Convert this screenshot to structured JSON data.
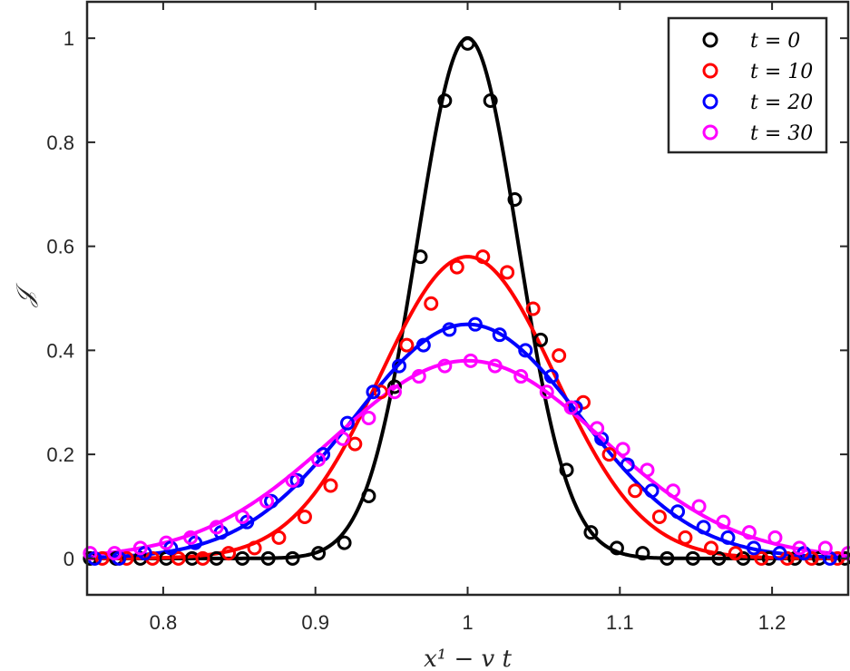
{
  "chart_data": {
    "type": "line",
    "title": "",
    "xlabel": "x¹ − v t",
    "ylabel": "𝒥",
    "xlim": [
      0.75,
      1.25
    ],
    "ylim": [
      -0.07,
      1.07
    ],
    "xticks": [
      0.8,
      0.9,
      1,
      1.1,
      1.2
    ],
    "xtick_labels": [
      "0.8",
      "0.9",
      "1",
      "1.1",
      "1.2"
    ],
    "yticks": [
      0,
      0.2,
      0.4,
      0.6,
      0.8,
      1
    ],
    "ytick_labels": [
      "0",
      "0.2",
      "0.4",
      "0.6",
      "0.8",
      "1"
    ],
    "grid": false,
    "legend_position": "top-right",
    "series": [
      {
        "name": "t = 0",
        "color": "#000000",
        "curve_sigma": 0.0332,
        "curve_peak": 1.0,
        "markers_x": [
          0.752,
          0.769,
          0.785,
          0.802,
          0.819,
          0.835,
          0.852,
          0.869,
          0.885,
          0.902,
          0.919,
          0.935,
          0.952,
          0.969,
          0.985,
          1.0,
          1.015,
          1.031,
          1.048,
          1.065,
          1.081,
          1.098,
          1.115,
          1.131,
          1.148,
          1.165,
          1.181,
          1.198,
          1.215,
          1.231,
          1.248
        ],
        "markers_y": [
          0.0,
          0.0,
          0.0,
          0.0,
          0.0,
          0.0,
          0.0,
          0.0,
          0.0,
          0.01,
          0.03,
          0.12,
          0.33,
          0.58,
          0.88,
          0.99,
          0.88,
          0.69,
          0.42,
          0.17,
          0.05,
          0.02,
          0.01,
          0.0,
          0.0,
          0.0,
          0.0,
          0.0,
          0.0,
          0.0,
          0.0
        ]
      },
      {
        "name": "t = 10",
        "color": "#ff0000",
        "curve_sigma": 0.0574,
        "curve_peak": 0.58,
        "markers_x": [
          0.76,
          0.776,
          0.793,
          0.81,
          0.826,
          0.843,
          0.86,
          0.876,
          0.893,
          0.91,
          0.926,
          0.943,
          0.96,
          0.976,
          0.993,
          1.01,
          1.026,
          1.043,
          1.06,
          1.076,
          1.093,
          1.11,
          1.126,
          1.143,
          1.16,
          1.176,
          1.193,
          1.21,
          1.226,
          1.243
        ],
        "markers_y": [
          0.0,
          0.0,
          0.0,
          0.0,
          0.0,
          0.01,
          0.02,
          0.04,
          0.08,
          0.14,
          0.22,
          0.32,
          0.41,
          0.49,
          0.56,
          0.58,
          0.55,
          0.48,
          0.39,
          0.3,
          0.2,
          0.13,
          0.08,
          0.04,
          0.02,
          0.01,
          0.0,
          0.0,
          0.0,
          0.0
        ]
      },
      {
        "name": "t = 20",
        "color": "#0000ff",
        "curve_sigma": 0.074,
        "curve_peak": 0.45,
        "markers_x": [
          0.755,
          0.771,
          0.788,
          0.805,
          0.821,
          0.838,
          0.855,
          0.871,
          0.888,
          0.905,
          0.921,
          0.938,
          0.955,
          0.971,
          0.988,
          1.005,
          1.021,
          1.038,
          1.055,
          1.071,
          1.088,
          1.105,
          1.121,
          1.138,
          1.155,
          1.171,
          1.188,
          1.205,
          1.221,
          1.238
        ],
        "markers_y": [
          0.0,
          0.0,
          0.01,
          0.02,
          0.03,
          0.05,
          0.07,
          0.11,
          0.15,
          0.2,
          0.26,
          0.32,
          0.37,
          0.41,
          0.44,
          0.45,
          0.43,
          0.4,
          0.35,
          0.29,
          0.23,
          0.18,
          0.13,
          0.09,
          0.06,
          0.04,
          0.02,
          0.01,
          0.01,
          0.0
        ]
      },
      {
        "name": "t = 30",
        "color": "#ff00ff",
        "curve_sigma": 0.0884,
        "curve_peak": 0.38,
        "markers_x": [
          0.752,
          0.768,
          0.785,
          0.802,
          0.818,
          0.835,
          0.852,
          0.868,
          0.885,
          0.902,
          0.918,
          0.935,
          0.952,
          0.968,
          0.985,
          1.002,
          1.018,
          1.035,
          1.052,
          1.068,
          1.085,
          1.102,
          1.118,
          1.135,
          1.152,
          1.168,
          1.185,
          1.202,
          1.218,
          1.235,
          1.25
        ],
        "markers_y": [
          0.01,
          0.01,
          0.02,
          0.03,
          0.04,
          0.06,
          0.08,
          0.11,
          0.15,
          0.19,
          0.23,
          0.27,
          0.32,
          0.35,
          0.37,
          0.38,
          0.37,
          0.35,
          0.32,
          0.29,
          0.25,
          0.21,
          0.17,
          0.13,
          0.1,
          0.07,
          0.05,
          0.04,
          0.02,
          0.02,
          0.01
        ]
      }
    ]
  }
}
